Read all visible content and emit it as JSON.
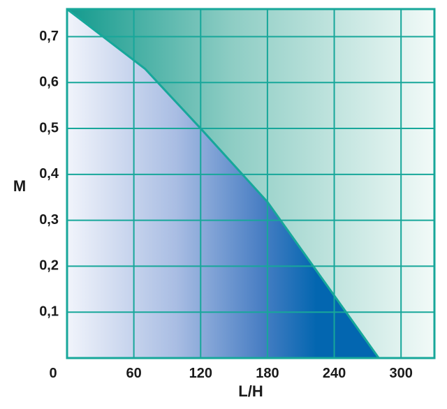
{
  "chart_data": {
    "type": "area",
    "xlabel": "L/H",
    "ylabel": "M",
    "xlim": [
      0,
      330
    ],
    "ylim": [
      0,
      0.76
    ],
    "x_ticks": [
      0,
      60,
      120,
      180,
      240,
      300
    ],
    "x_tick_labels": [
      "0",
      "60",
      "120",
      "180",
      "240",
      "300"
    ],
    "y_ticks": [
      0.1,
      0.2,
      0.3,
      0.4,
      0.5,
      0.6,
      0.7
    ],
    "y_tick_labels": [
      "0,1",
      "0,2",
      "0,3",
      "0,4",
      "0,5",
      "0,6",
      "0,7"
    ],
    "grid": true,
    "series": [
      {
        "x": [
          0,
          70,
          120,
          180,
          280
        ],
        "y": [
          0.76,
          0.63,
          0.5,
          0.34,
          0.0
        ]
      }
    ],
    "colors": {
      "frame": "#17a79a",
      "grid_lines": "#17a79a",
      "area_light": "#f1f4fb",
      "area_mid": "#7799d2",
      "area_dark": "#0366b0",
      "background_dark": "#129a8d",
      "background_light": "#f2faf8"
    }
  }
}
